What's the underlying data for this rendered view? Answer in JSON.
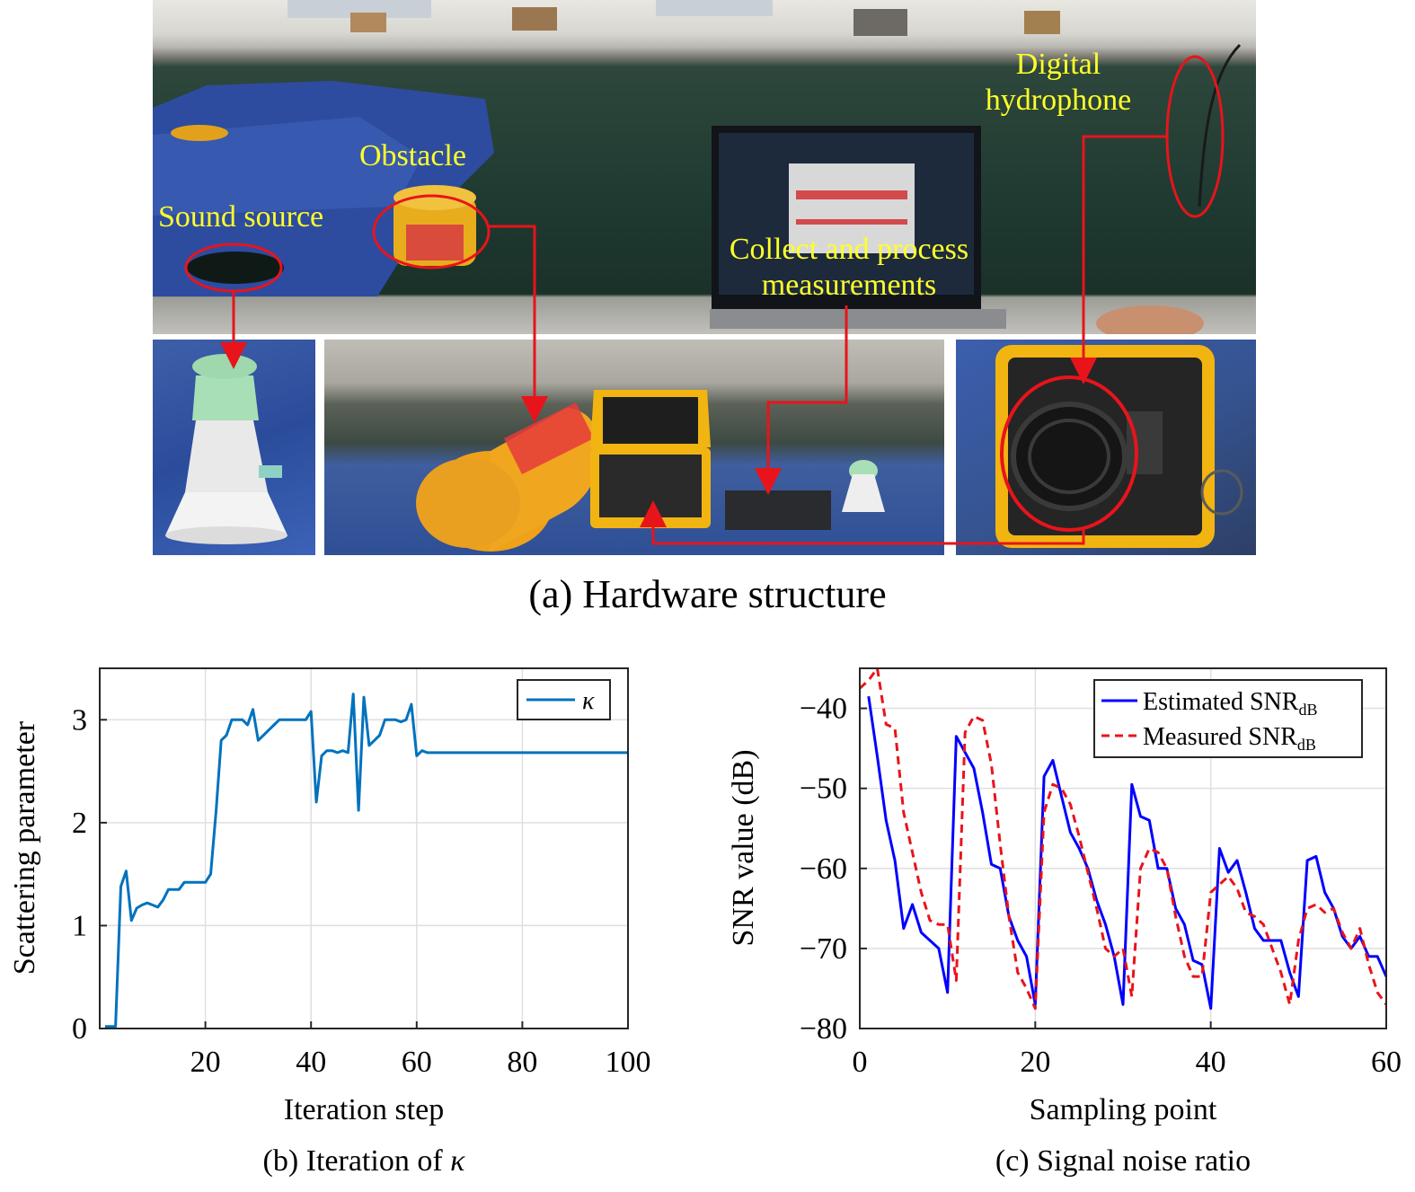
{
  "panel_a": {
    "caption": "(a) Hardware structure",
    "labels": {
      "sound_source": "Sound source",
      "obstacle": "Obstacle",
      "digital_hydrophone_line1": "Digital",
      "digital_hydrophone_line2": "hydrophone",
      "collect_line1": "Collect and process",
      "collect_line2": "measurements"
    },
    "colors": {
      "label": "#ffff2a",
      "highlight": "#e8141b"
    }
  },
  "panel_b": {
    "caption_prefix": "(b) Iteration of ",
    "caption_symbol": "κ"
  },
  "panel_c": {
    "caption": "(c) Signal noise ratio"
  },
  "chart_data": [
    {
      "type": "line",
      "xlabel": "Iteration step",
      "ylabel": "Scattering parameter",
      "xlim": [
        0,
        100
      ],
      "ylim": [
        0,
        3.5
      ],
      "xticks": [
        20,
        40,
        60,
        80,
        100
      ],
      "yticks": [
        0,
        1,
        2,
        3
      ],
      "grid": true,
      "legend_position": "top-right",
      "series": [
        {
          "name": "κ",
          "color": "#0072bd",
          "style": "solid",
          "x": [
            1,
            2,
            3,
            4,
            5,
            6,
            7,
            8,
            9,
            10,
            11,
            12,
            13,
            14,
            15,
            16,
            17,
            18,
            19,
            20,
            21,
            22,
            23,
            24,
            25,
            26,
            27,
            28,
            29,
            30,
            31,
            32,
            33,
            34,
            35,
            36,
            37,
            38,
            39,
            40,
            41,
            42,
            43,
            44,
            45,
            46,
            47,
            48,
            49,
            50,
            51,
            52,
            53,
            54,
            55,
            56,
            57,
            58,
            59,
            60,
            61,
            62,
            63,
            64,
            65,
            70,
            80,
            90,
            100
          ],
          "y": [
            0.02,
            0.02,
            0.02,
            1.38,
            1.53,
            1.05,
            1.17,
            1.2,
            1.22,
            1.2,
            1.18,
            1.25,
            1.35,
            1.35,
            1.35,
            1.42,
            1.42,
            1.42,
            1.42,
            1.42,
            1.5,
            2.1,
            2.8,
            2.85,
            3.0,
            3.0,
            3.0,
            2.95,
            3.1,
            2.8,
            2.85,
            2.9,
            2.95,
            3.0,
            3.0,
            3.0,
            3.0,
            3.0,
            3.0,
            3.08,
            2.2,
            2.65,
            2.7,
            2.7,
            2.68,
            2.7,
            2.68,
            3.25,
            2.12,
            3.22,
            2.75,
            2.8,
            2.85,
            3.0,
            3.0,
            3.0,
            2.98,
            3.0,
            3.15,
            2.65,
            2.7,
            2.68,
            2.68,
            2.68,
            2.68,
            2.68,
            2.68,
            2.68,
            2.68
          ]
        }
      ]
    },
    {
      "type": "line",
      "xlabel": "Sampling point",
      "ylabel": "SNR value (dB)",
      "xlim": [
        0,
        60
      ],
      "ylim": [
        -80,
        -35
      ],
      "xticks": [
        0,
        20,
        40,
        60
      ],
      "yticks": [
        -80,
        -70,
        -60,
        -50,
        -40
      ],
      "grid": true,
      "legend_position": "top-right",
      "series": [
        {
          "name": "Estimated SNR",
          "name_subscript": "dB",
          "color": "#0000ff",
          "style": "solid",
          "x": [
            1,
            2,
            3,
            4,
            5,
            6,
            7,
            8,
            9,
            10,
            11,
            12,
            13,
            14,
            15,
            16,
            17,
            18,
            19,
            20,
            21,
            22,
            23,
            24,
            25,
            26,
            27,
            28,
            29,
            30,
            31,
            32,
            33,
            34,
            35,
            36,
            37,
            38,
            39,
            40,
            41,
            42,
            43,
            44,
            45,
            46,
            47,
            48,
            49,
            50,
            51,
            52,
            53,
            54,
            55,
            56,
            57,
            58,
            59,
            60
          ],
          "y": [
            -38.5,
            -46,
            -54,
            -59,
            -67.5,
            -64.5,
            -68,
            -69,
            -70,
            -75.5,
            -43.5,
            -45.5,
            -47.5,
            -53,
            -59.5,
            -60,
            -66,
            -69,
            -71,
            -77,
            -48.5,
            -46.5,
            -51,
            -55.5,
            -57.5,
            -60,
            -64,
            -67,
            -71,
            -77,
            -49.5,
            -53.5,
            -54,
            -60,
            -60,
            -65,
            -67,
            -71.5,
            -72,
            -77.5,
            -57.5,
            -60.5,
            -59,
            -63,
            -67.5,
            -69,
            -69,
            -69,
            -73,
            -76,
            -59,
            -58.5,
            -63,
            -65,
            -68.5,
            -70,
            -68.5,
            -71,
            -71,
            -73.5
          ]
        },
        {
          "name": "Measured SNR",
          "name_subscript": "dB",
          "color": "#e8141b",
          "style": "dashed",
          "x": [
            0,
            1,
            2,
            3,
            4,
            5,
            6,
            7,
            8,
            9,
            10,
            11,
            12,
            13,
            14,
            15,
            16,
            17,
            18,
            19,
            20,
            21,
            22,
            23,
            24,
            25,
            26,
            27,
            28,
            29,
            30,
            31,
            32,
            33,
            34,
            35,
            36,
            37,
            38,
            39,
            40,
            41,
            42,
            43,
            44,
            45,
            46,
            47,
            48,
            49,
            50,
            51,
            52,
            53,
            54,
            55,
            56,
            57,
            58,
            59,
            60
          ],
          "y": [
            -37.5,
            -36.5,
            -35,
            -42,
            -42.5,
            -53,
            -58,
            -63,
            -66.5,
            -67,
            -67,
            -74,
            -43,
            -41,
            -41.5,
            -47,
            -57,
            -66,
            -73,
            -75,
            -77.5,
            -53,
            -49.5,
            -50,
            -52,
            -56,
            -60.5,
            -65,
            -70,
            -71,
            -70,
            -76,
            -60,
            -57.5,
            -58,
            -60,
            -66,
            -71,
            -73.5,
            -73.5,
            -63,
            -62,
            -61,
            -62.5,
            -65.5,
            -66,
            -67,
            -70,
            -73,
            -77,
            -69,
            -65,
            -64.5,
            -65.5,
            -65,
            -68,
            -70,
            -67.5,
            -72,
            -75.5,
            -77
          ]
        }
      ]
    }
  ]
}
